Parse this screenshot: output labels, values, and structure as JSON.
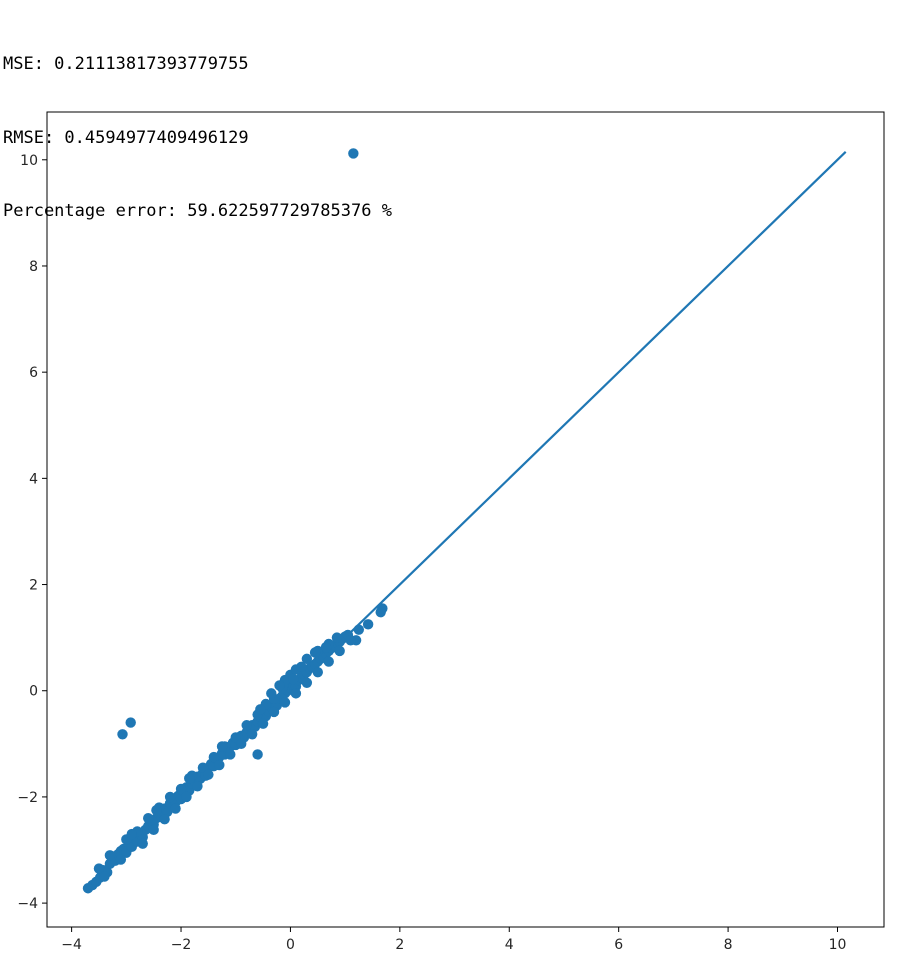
{
  "output": {
    "lines": [
      "MSE: 0.21113817393779755",
      "RMSE: 0.4594977409496129",
      "Percentage error: 59.622597729785376 %"
    ]
  },
  "chart_data": {
    "type": "scatter",
    "title": "",
    "xlabel": "",
    "ylabel": "",
    "xlim": [
      -4.45,
      10.85
    ],
    "ylim": [
      -4.45,
      10.9
    ],
    "grid": false,
    "legend": "none",
    "color": "#1f77b4",
    "xticks": [
      -4,
      -2,
      0,
      2,
      4,
      6,
      8,
      10
    ],
    "yticks": [
      -4,
      -2,
      0,
      2,
      4,
      6,
      8,
      10
    ],
    "xtick_labels": [
      "−4",
      "−2",
      "0",
      "2",
      "4",
      "6",
      "8",
      "10"
    ],
    "ytick_labels": [
      "−4",
      "−2",
      "0",
      "2",
      "4",
      "6",
      "8",
      "10"
    ],
    "line": {
      "x": [
        -3.7,
        10.15
      ],
      "y": [
        -3.7,
        10.15
      ]
    },
    "points": [
      [
        1.15,
        10.12
      ],
      [
        -2.92,
        -0.6
      ],
      [
        -3.07,
        -0.82
      ],
      [
        -0.6,
        -1.2
      ],
      [
        1.65,
        1.48
      ],
      [
        1.68,
        1.55
      ],
      [
        1.42,
        1.25
      ],
      [
        1.25,
        1.15
      ],
      [
        1.2,
        0.95
      ],
      [
        -3.7,
        -3.72
      ],
      [
        -3.62,
        -3.66
      ],
      [
        -3.55,
        -3.6
      ],
      [
        -3.48,
        -3.52
      ],
      [
        -3.42,
        -3.38
      ],
      [
        -3.35,
        -3.42
      ],
      [
        -3.3,
        -3.26
      ],
      [
        -3.25,
        -3.12
      ],
      [
        -3.2,
        -3.2
      ],
      [
        -3.15,
        -3.08
      ],
      [
        -3.1,
        -3.02
      ],
      [
        -3.05,
        -2.98
      ],
      [
        -3.0,
        -3.05
      ],
      [
        -2.95,
        -2.9
      ],
      [
        -2.9,
        -2.94
      ],
      [
        -2.85,
        -2.78
      ],
      [
        -2.8,
        -2.84
      ],
      [
        -2.75,
        -2.7
      ],
      [
        -2.7,
        -2.76
      ],
      [
        -2.65,
        -2.62
      ],
      [
        -2.6,
        -2.55
      ],
      [
        -2.55,
        -2.45
      ],
      [
        -2.5,
        -2.52
      ],
      [
        -2.45,
        -2.4
      ],
      [
        -2.4,
        -2.32
      ],
      [
        -2.35,
        -2.38
      ],
      [
        -2.3,
        -2.22
      ],
      [
        -2.25,
        -2.28
      ],
      [
        -2.2,
        -2.12
      ],
      [
        -2.15,
        -2.05
      ],
      [
        -2.1,
        -2.1
      ],
      [
        -2.05,
        -1.98
      ],
      [
        -2.0,
        -2.04
      ],
      [
        -1.95,
        -1.9
      ],
      [
        -1.9,
        -1.82
      ],
      [
        -1.85,
        -1.88
      ],
      [
        -1.8,
        -1.75
      ],
      [
        -1.75,
        -1.7
      ],
      [
        -1.7,
        -1.62
      ],
      [
        -1.65,
        -1.66
      ],
      [
        -1.6,
        -1.55
      ],
      [
        -1.55,
        -1.6
      ],
      [
        -1.5,
        -1.45
      ],
      [
        -1.45,
        -1.38
      ],
      [
        -1.4,
        -1.42
      ],
      [
        -1.35,
        -1.3
      ],
      [
        -1.3,
        -1.25
      ],
      [
        -1.25,
        -1.18
      ],
      [
        -1.2,
        -1.2
      ],
      [
        -1.15,
        -1.1
      ],
      [
        -1.1,
        -1.05
      ],
      [
        -1.05,
        -0.98
      ],
      [
        -1.0,
        -1.02
      ],
      [
        -0.95,
        -0.92
      ],
      [
        -0.9,
        -0.85
      ],
      [
        -0.85,
        -0.88
      ],
      [
        -0.8,
        -0.78
      ],
      [
        -0.75,
        -0.72
      ],
      [
        -0.7,
        -0.65
      ],
      [
        -0.65,
        -0.68
      ],
      [
        -0.6,
        -0.58
      ],
      [
        -0.55,
        -0.5
      ],
      [
        -0.5,
        -0.44
      ],
      [
        -0.45,
        -0.48
      ],
      [
        -0.4,
        -0.38
      ],
      [
        -0.35,
        -0.3
      ],
      [
        -0.3,
        -0.25
      ],
      [
        -0.25,
        -0.28
      ],
      [
        -0.2,
        -0.15
      ],
      [
        -0.15,
        -0.1
      ],
      [
        -0.1,
        -0.05
      ],
      [
        -0.05,
        0.0
      ],
      [
        0.0,
        0.05
      ],
      [
        0.05,
        0.1
      ],
      [
        0.1,
        0.08
      ],
      [
        0.15,
        0.2
      ],
      [
        0.2,
        0.25
      ],
      [
        0.25,
        0.3
      ],
      [
        0.3,
        0.35
      ],
      [
        0.35,
        0.42
      ],
      [
        0.4,
        0.45
      ],
      [
        0.45,
        0.5
      ],
      [
        0.5,
        0.55
      ],
      [
        0.55,
        0.6
      ],
      [
        0.6,
        0.65
      ],
      [
        0.65,
        0.7
      ],
      [
        0.7,
        0.75
      ],
      [
        0.75,
        0.8
      ],
      [
        0.8,
        0.85
      ],
      [
        0.85,
        0.9
      ],
      [
        0.9,
        0.92
      ],
      [
        0.95,
        0.98
      ],
      [
        1.0,
        1.02
      ],
      [
        1.05,
        1.05
      ],
      [
        -3.5,
        -3.35
      ],
      [
        -3.3,
        -3.1
      ],
      [
        -3.0,
        -2.8
      ],
      [
        -2.8,
        -2.65
      ],
      [
        -2.6,
        -2.4
      ],
      [
        -2.4,
        -2.2
      ],
      [
        -2.2,
        -2.0
      ],
      [
        -2.0,
        -1.85
      ],
      [
        -1.8,
        -1.6
      ],
      [
        -1.6,
        -1.45
      ],
      [
        -1.4,
        -1.25
      ],
      [
        -1.2,
        -1.05
      ],
      [
        -1.0,
        -0.88
      ],
      [
        -0.8,
        -0.65
      ],
      [
        -0.6,
        -0.45
      ],
      [
        -0.45,
        -0.25
      ],
      [
        -0.3,
        -0.15
      ],
      [
        -0.15,
        0.05
      ],
      [
        0.0,
        0.3
      ],
      [
        -0.1,
        0.2
      ],
      [
        0.1,
        0.4
      ],
      [
        0.3,
        0.6
      ],
      [
        0.5,
        0.75
      ],
      [
        0.7,
        0.88
      ],
      [
        -3.4,
        -3.5
      ],
      [
        -3.1,
        -3.18
      ],
      [
        -2.7,
        -2.88
      ],
      [
        -2.5,
        -2.62
      ],
      [
        -2.3,
        -2.42
      ],
      [
        -2.1,
        -2.22
      ],
      [
        -1.9,
        -2.0
      ],
      [
        -1.7,
        -1.8
      ],
      [
        -1.5,
        -1.58
      ],
      [
        -1.3,
        -1.4
      ],
      [
        -1.1,
        -1.2
      ],
      [
        -0.9,
        -1.0
      ],
      [
        -0.7,
        -0.82
      ],
      [
        -0.5,
        -0.62
      ],
      [
        -0.3,
        -0.4
      ],
      [
        -0.1,
        -0.22
      ],
      [
        0.1,
        -0.05
      ],
      [
        0.3,
        0.15
      ],
      [
        0.5,
        0.35
      ],
      [
        0.7,
        0.55
      ],
      [
        0.9,
        0.75
      ],
      [
        1.1,
        0.95
      ],
      [
        -2.9,
        -2.7
      ],
      [
        -2.45,
        -2.25
      ],
      [
        -1.85,
        -1.65
      ],
      [
        -1.25,
        -1.05
      ],
      [
        -0.55,
        -0.35
      ],
      [
        0.2,
        0.45
      ],
      [
        0.45,
        0.72
      ],
      [
        0.65,
        0.82
      ],
      [
        0.85,
        1.0
      ],
      [
        -0.35,
        -0.05
      ],
      [
        -0.2,
        0.1
      ],
      [
        0.05,
        0.22
      ]
    ]
  }
}
